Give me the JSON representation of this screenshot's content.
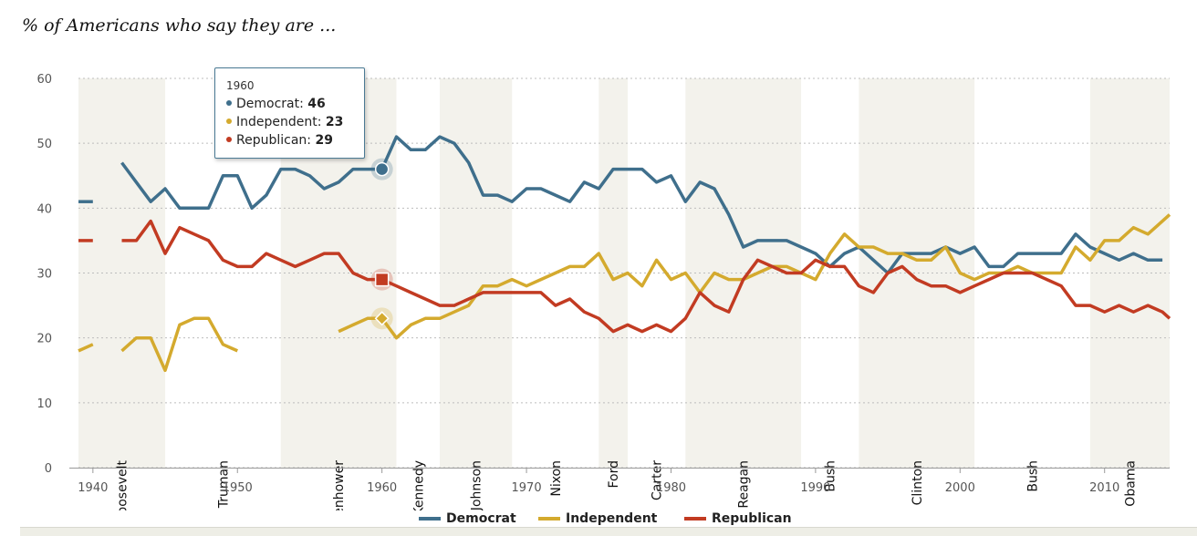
{
  "title": "% of Americans who say they are ...",
  "colors": {
    "democrat": "#3f6f8c",
    "independent": "#d4aa2e",
    "republican": "#c23b22",
    "band": "#f3f2ec"
  },
  "tooltip": {
    "year": "1960",
    "rows": [
      {
        "label": "Democrat:",
        "value": "46",
        "color": "#3f6f8c"
      },
      {
        "label": "Independent:",
        "value": "23",
        "color": "#d4aa2e"
      },
      {
        "label": "Republican:",
        "value": "29",
        "color": "#c23b22"
      }
    ]
  },
  "legend": [
    {
      "label": "Democrat",
      "color": "#3f6f8c"
    },
    {
      "label": "Independent",
      "color": "#d4aa2e"
    },
    {
      "label": "Republican",
      "color": "#c23b22"
    }
  ],
  "chart_data": {
    "type": "line",
    "title": "% of Americans who say they are ...",
    "xlim": [
      1939,
      2014.5
    ],
    "ylim": [
      0,
      60
    ],
    "x_ticks": [
      1940,
      1950,
      1960,
      1970,
      1980,
      1990,
      2000,
      2010
    ],
    "y_ticks": [
      0,
      10,
      20,
      30,
      40,
      50,
      60
    ],
    "grid": true,
    "legend_position": "bottom",
    "highlight_x": 1960,
    "presidencies": [
      {
        "name": "Roosevelt",
        "start": 1939,
        "end": 1945,
        "shaded": true
      },
      {
        "name": "Truman",
        "start": 1945,
        "end": 1953,
        "shaded": false
      },
      {
        "name": "Eisenhower",
        "start": 1953,
        "end": 1961,
        "shaded": true
      },
      {
        "name": "Kennedy",
        "start": 1961,
        "end": 1964,
        "shaded": false
      },
      {
        "name": "Johnson",
        "start": 1964,
        "end": 1969,
        "shaded": true
      },
      {
        "name": "Nixon",
        "start": 1969,
        "end": 1975,
        "shaded": false
      },
      {
        "name": "Ford",
        "start": 1975,
        "end": 1977,
        "shaded": true
      },
      {
        "name": "Carter",
        "start": 1977,
        "end": 1981,
        "shaded": false
      },
      {
        "name": "Reagan",
        "start": 1981,
        "end": 1989,
        "shaded": true
      },
      {
        "name": "Bush",
        "start": 1989,
        "end": 1993,
        "shaded": false
      },
      {
        "name": "Clinton",
        "start": 1993,
        "end": 2001,
        "shaded": true
      },
      {
        "name": "Bush",
        "start": 2001,
        "end": 2009,
        "shaded": false
      },
      {
        "name": "Obama",
        "start": 2009,
        "end": 2014.5,
        "shaded": true
      }
    ],
    "series": [
      {
        "name": "Democrat",
        "color": "#3f6f8c",
        "segments": [
          [
            [
              1939,
              41
            ],
            [
              1940,
              41
            ]
          ],
          [
            [
              1942,
              47
            ],
            [
              1943,
              44
            ],
            [
              1944,
              41
            ],
            [
              1945,
              43
            ],
            [
              1946,
              40
            ],
            [
              1947,
              40
            ],
            [
              1948,
              40
            ],
            [
              1949,
              45
            ],
            [
              1950,
              45
            ],
            [
              1951,
              40
            ],
            [
              1952,
              42
            ],
            [
              1953,
              46
            ],
            [
              1954,
              46
            ],
            [
              1955,
              45
            ],
            [
              1956,
              43
            ],
            [
              1957,
              44
            ],
            [
              1958,
              46
            ],
            [
              1959,
              46
            ],
            [
              1960,
              46
            ],
            [
              1961,
              51
            ],
            [
              1962,
              49
            ],
            [
              1963,
              49
            ],
            [
              1964,
              51
            ],
            [
              1965,
              50
            ],
            [
              1966,
              47
            ],
            [
              1967,
              42
            ],
            [
              1968,
              42
            ],
            [
              1969,
              41
            ],
            [
              1970,
              43
            ],
            [
              1971,
              43
            ],
            [
              1972,
              42
            ],
            [
              1973,
              41
            ],
            [
              1974,
              44
            ],
            [
              1975,
              43
            ],
            [
              1976,
              46
            ],
            [
              1977,
              46
            ],
            [
              1978,
              46
            ],
            [
              1979,
              44
            ],
            [
              1980,
              45
            ],
            [
              1981,
              41
            ],
            [
              1982,
              44
            ],
            [
              1983,
              43
            ],
            [
              1984,
              39
            ],
            [
              1985,
              34
            ],
            [
              1986,
              35
            ],
            [
              1987,
              35
            ],
            [
              1988,
              35
            ],
            [
              1989,
              34
            ],
            [
              1990,
              33
            ],
            [
              1991,
              31
            ],
            [
              1992,
              33
            ],
            [
              1993,
              34
            ],
            [
              1994,
              32
            ],
            [
              1995,
              30
            ],
            [
              1996,
              33
            ],
            [
              1997,
              33
            ],
            [
              1998,
              33
            ],
            [
              1999,
              34
            ],
            [
              2000,
              33
            ],
            [
              2001,
              34
            ],
            [
              2002,
              31
            ],
            [
              2003,
              31
            ],
            [
              2004,
              33
            ],
            [
              2005,
              33
            ],
            [
              2006,
              33
            ],
            [
              2007,
              33
            ],
            [
              2008,
              36
            ],
            [
              2009,
              34
            ],
            [
              2010,
              33
            ],
            [
              2011,
              32
            ],
            [
              2012,
              33
            ],
            [
              2013,
              32
            ],
            [
              2014,
              32
            ]
          ]
        ]
      },
      {
        "name": "Independent",
        "color": "#d4aa2e",
        "segments": [
          [
            [
              1939,
              18
            ],
            [
              1940,
              19
            ]
          ],
          [
            [
              1942,
              18
            ],
            [
              1943,
              20
            ],
            [
              1944,
              20
            ],
            [
              1945,
              15
            ],
            [
              1946,
              22
            ],
            [
              1947,
              23
            ],
            [
              1948,
              23
            ],
            [
              1949,
              19
            ],
            [
              1950,
              18
            ]
          ],
          [
            [
              1957,
              21
            ],
            [
              1958,
              22
            ],
            [
              1959,
              23
            ],
            [
              1960,
              23
            ],
            [
              1961,
              20
            ],
            [
              1962,
              22
            ],
            [
              1963,
              23
            ],
            [
              1964,
              23
            ],
            [
              1965,
              24
            ],
            [
              1966,
              25
            ],
            [
              1967,
              28
            ],
            [
              1968,
              28
            ],
            [
              1969,
              29
            ],
            [
              1970,
              28
            ],
            [
              1971,
              29
            ],
            [
              1972,
              30
            ],
            [
              1973,
              31
            ],
            [
              1974,
              31
            ],
            [
              1975,
              33
            ],
            [
              1976,
              29
            ],
            [
              1977,
              30
            ],
            [
              1978,
              28
            ],
            [
              1979,
              32
            ],
            [
              1980,
              29
            ],
            [
              1981,
              30
            ],
            [
              1982,
              27
            ],
            [
              1983,
              30
            ],
            [
              1984,
              29
            ],
            [
              1985,
              29
            ],
            [
              1986,
              30
            ],
            [
              1987,
              31
            ],
            [
              1988,
              31
            ],
            [
              1989,
              30
            ],
            [
              1990,
              29
            ],
            [
              1991,
              33
            ],
            [
              1992,
              36
            ],
            [
              1993,
              34
            ],
            [
              1994,
              34
            ],
            [
              1995,
              33
            ],
            [
              1996,
              33
            ],
            [
              1997,
              32
            ],
            [
              1998,
              32
            ],
            [
              1999,
              34
            ],
            [
              2000,
              30
            ],
            [
              2001,
              29
            ],
            [
              2002,
              30
            ],
            [
              2003,
              30
            ],
            [
              2004,
              31
            ],
            [
              2005,
              30
            ],
            [
              2006,
              30
            ],
            [
              2007,
              30
            ],
            [
              2008,
              34
            ],
            [
              2009,
              32
            ],
            [
              2010,
              35
            ],
            [
              2011,
              35
            ],
            [
              2012,
              37
            ],
            [
              2013,
              36
            ],
            [
              2014,
              38
            ],
            [
              2014.5,
              39
            ]
          ]
        ]
      },
      {
        "name": "Republican",
        "color": "#c23b22",
        "segments": [
          [
            [
              1939,
              35
            ],
            [
              1940,
              35
            ]
          ],
          [
            [
              1942,
              35
            ],
            [
              1943,
              35
            ],
            [
              1944,
              38
            ],
            [
              1945,
              33
            ],
            [
              1946,
              37
            ],
            [
              1947,
              36
            ],
            [
              1948,
              35
            ],
            [
              1949,
              32
            ],
            [
              1950,
              31
            ],
            [
              1951,
              31
            ],
            [
              1952,
              33
            ],
            [
              1953,
              32
            ],
            [
              1954,
              31
            ],
            [
              1955,
              32
            ],
            [
              1956,
              33
            ],
            [
              1957,
              33
            ],
            [
              1958,
              30
            ],
            [
              1959,
              29
            ],
            [
              1960,
              29
            ],
            [
              1961,
              28
            ],
            [
              1962,
              27
            ],
            [
              1963,
              26
            ],
            [
              1964,
              25
            ],
            [
              1965,
              25
            ],
            [
              1966,
              26
            ],
            [
              1967,
              27
            ],
            [
              1968,
              27
            ],
            [
              1969,
              27
            ],
            [
              1970,
              27
            ],
            [
              1971,
              27
            ],
            [
              1972,
              25
            ],
            [
              1973,
              26
            ],
            [
              1974,
              24
            ],
            [
              1975,
              23
            ],
            [
              1976,
              21
            ],
            [
              1977,
              22
            ],
            [
              1978,
              21
            ],
            [
              1979,
              22
            ],
            [
              1980,
              21
            ],
            [
              1981,
              23
            ],
            [
              1982,
              27
            ],
            [
              1983,
              25
            ],
            [
              1984,
              24
            ],
            [
              1985,
              29
            ],
            [
              1986,
              32
            ],
            [
              1987,
              31
            ],
            [
              1988,
              30
            ],
            [
              1989,
              30
            ],
            [
              1990,
              32
            ],
            [
              1991,
              31
            ],
            [
              1992,
              31
            ],
            [
              1993,
              28
            ],
            [
              1994,
              27
            ],
            [
              1995,
              30
            ],
            [
              1996,
              31
            ],
            [
              1997,
              29
            ],
            [
              1998,
              28
            ],
            [
              1999,
              28
            ],
            [
              2000,
              27
            ],
            [
              2001,
              28
            ],
            [
              2002,
              29
            ],
            [
              2003,
              30
            ],
            [
              2004,
              30
            ],
            [
              2005,
              30
            ],
            [
              2006,
              29
            ],
            [
              2007,
              28
            ],
            [
              2008,
              25
            ],
            [
              2009,
              25
            ],
            [
              2010,
              24
            ],
            [
              2011,
              25
            ],
            [
              2012,
              24
            ],
            [
              2013,
              25
            ],
            [
              2014,
              24
            ],
            [
              2014.5,
              23
            ]
          ]
        ]
      }
    ]
  }
}
